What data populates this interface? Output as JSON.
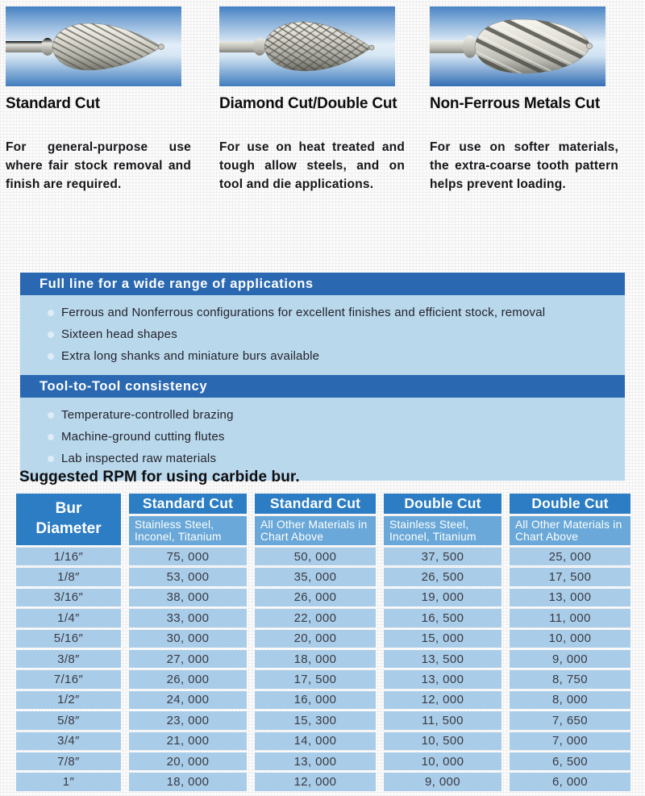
{
  "colors": {
    "table_header_blue": "#2c7dc3",
    "table_subheader_blue": "#69a8d8",
    "table_row_blue": "#a9cde9",
    "feature_header_blue": "#2a68b2",
    "feature_body_blue": "#b9d8ec",
    "photo_background_blue": "#3f7cbe"
  },
  "products": [
    {
      "name": "Standard Cut",
      "description": "For general-purpose use where fair stock removal and finish are required.",
      "image": "standard-cut-bur-photo"
    },
    {
      "name": "Diamond Cut/Double Cut",
      "description": "For use on heat treated and tough allow steels, and on tool and die applications.",
      "image": "diamond-cut-bur-photo"
    },
    {
      "name": "Non-Ferrous Metals Cut",
      "description": "For use on softer materials, the extra-coarse tooth pattern helps prevent loading.",
      "image": "non-ferrous-bur-photo"
    }
  ],
  "feature_box": {
    "sections": [
      {
        "title": "Full line for a wide range of applications",
        "bullets": [
          "Ferrous and Nonferrous configurations for excellent finishes and efficient stock, removal",
          "Sixteen head shapes",
          "Extra long shanks and miniature burs available"
        ]
      },
      {
        "title": "Tool-to-Tool consistency",
        "bullets": [
          "Temperature-controlled brazing",
          "Machine-ground cutting flutes",
          "Lab inspected raw materials"
        ]
      }
    ]
  },
  "rpm_table": {
    "title": "Suggested RPM for using carbide bur.",
    "corner_header": "Bur Diameter",
    "column_groups": [
      {
        "label": "Standard Cut",
        "sub": "Stainless Steel, Inconel, Titanium"
      },
      {
        "label": "Standard Cut",
        "sub": "All Other Materials in Chart Above"
      },
      {
        "label": "Double Cut",
        "sub": "Stainless Steel, Inconel, Titanium"
      },
      {
        "label": "Double Cut",
        "sub": "All Other Materials in Chart Above"
      }
    ],
    "rows": [
      {
        "diameter": "1/16″",
        "values": [
          "75, 000",
          "50, 000",
          "37, 500",
          "25, 000"
        ]
      },
      {
        "diameter": "1/8″",
        "values": [
          "53, 000",
          "35, 000",
          "26, 500",
          "17, 500"
        ]
      },
      {
        "diameter": "3/16″",
        "values": [
          "38, 000",
          "26, 000",
          "19, 000",
          "13, 000"
        ]
      },
      {
        "diameter": "1/4″",
        "values": [
          "33, 000",
          "22, 000",
          "16, 500",
          "11, 000"
        ]
      },
      {
        "diameter": "5/16″",
        "values": [
          "30, 000",
          "20, 000",
          "15, 000",
          "10, 000"
        ]
      },
      {
        "diameter": "3/8″",
        "values": [
          "27, 000",
          "18, 000",
          "13, 500",
          "9, 000"
        ]
      },
      {
        "diameter": "7/16″",
        "values": [
          "26, 000",
          "17, 500",
          "13, 000",
          "8, 750"
        ]
      },
      {
        "diameter": "1/2″",
        "values": [
          "24, 000",
          "16, 000",
          "12, 000",
          "8, 000"
        ]
      },
      {
        "diameter": "5/8″",
        "values": [
          "23, 000",
          "15, 300",
          "11, 500",
          "7, 650"
        ]
      },
      {
        "diameter": "3/4″",
        "values": [
          "21, 000",
          "14, 000",
          "10, 500",
          "7, 000"
        ]
      },
      {
        "diameter": "7/8″",
        "values": [
          "20, 000",
          "13, 000",
          "10, 000",
          "6, 500"
        ]
      },
      {
        "diameter": "1″",
        "values": [
          "18, 000",
          "12, 000",
          "9, 000",
          "6, 000"
        ]
      }
    ]
  }
}
